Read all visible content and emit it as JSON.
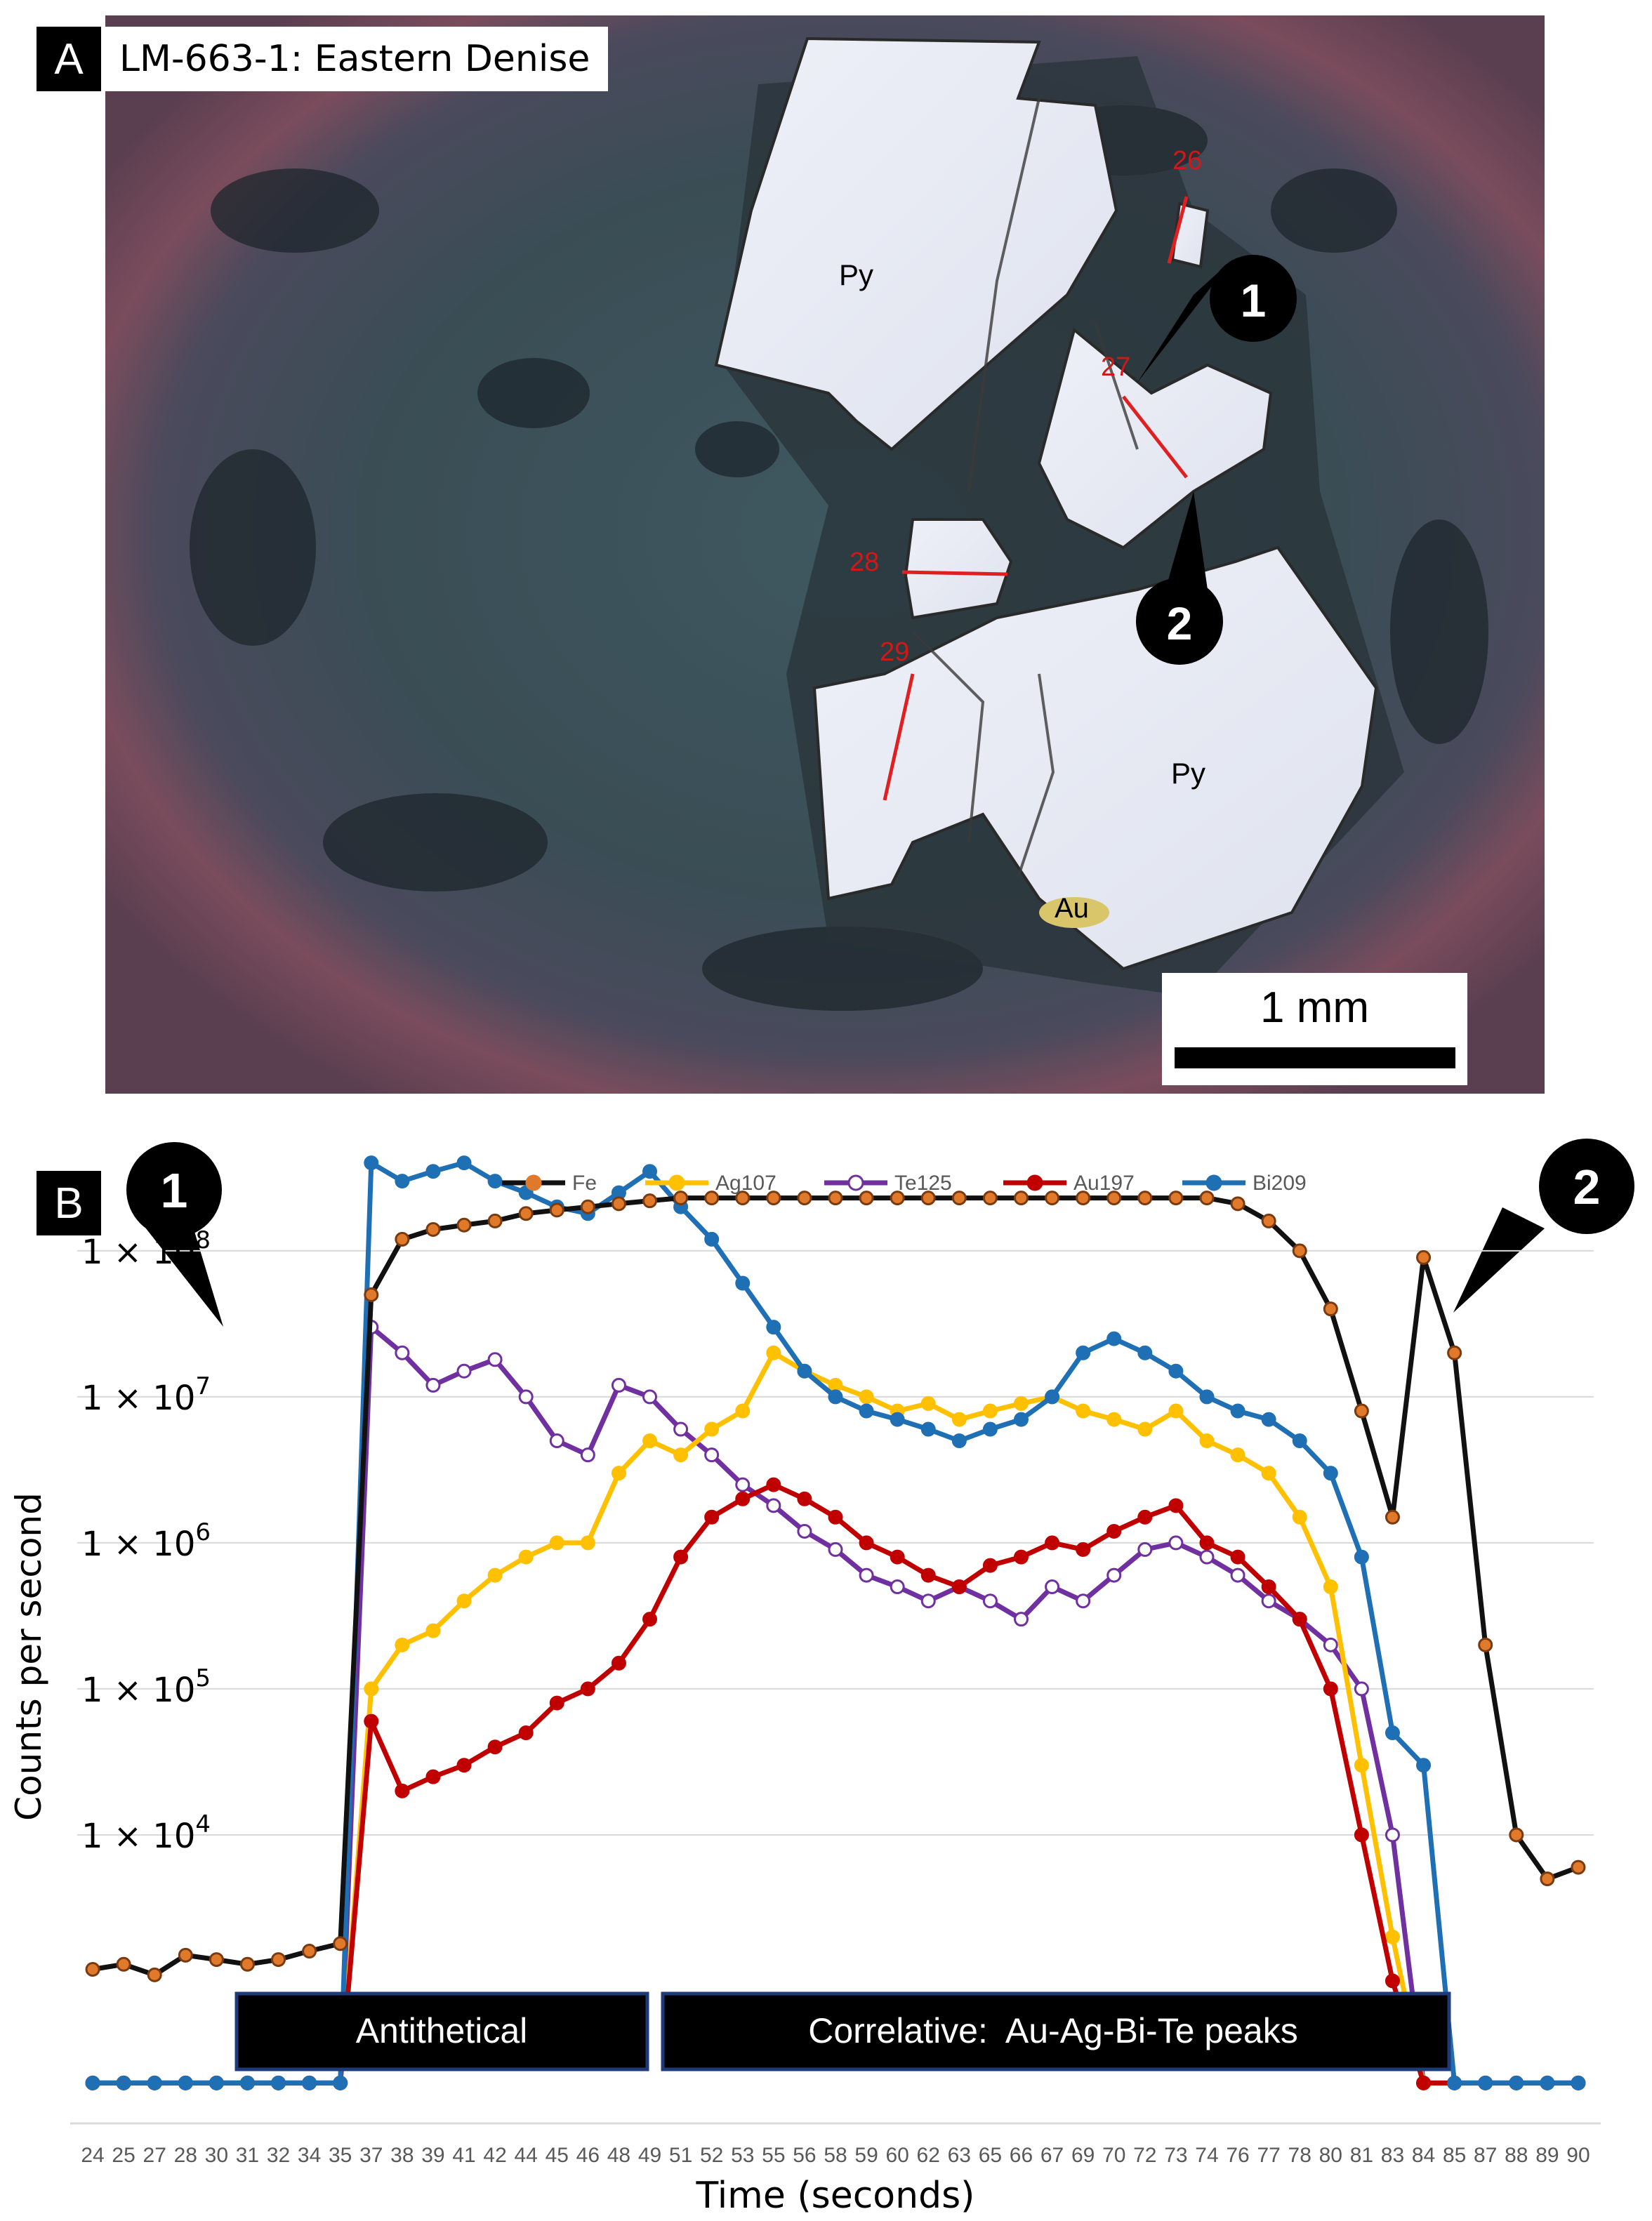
{
  "panel_a": {
    "letter": "A",
    "title": "LM-663-1: Eastern Denise",
    "scale_label": "1 mm",
    "mineral_labels": [
      "Py",
      "Py",
      "Au"
    ],
    "transect_labels": [
      "26",
      "27",
      "28",
      "29"
    ],
    "callouts": [
      "1",
      "2"
    ]
  },
  "panel_b": {
    "letter": "B",
    "callouts": [
      "1",
      "2"
    ],
    "boxes": [
      "Antithetical",
      "Correlative:  Au-Ag-Bi-Te peaks"
    ]
  },
  "colors": {
    "Fe": "#e07a2a",
    "Fe_line": "#111111",
    "Ag107": "#ffc000",
    "Te125": "#7030a0",
    "Au197": "#c00000",
    "Bi209": "#1f6fb4"
  },
  "chart_data": {
    "type": "line",
    "title": "",
    "xlabel": "Time (seconds)",
    "ylabel": "Counts per second",
    "y_scale": "log",
    "ylim": [
      100,
      600000000
    ],
    "y_tick_values": [
      10000,
      100000,
      1000000,
      10000000,
      100000000
    ],
    "y_tick_labels": [
      "1 × 10^4",
      "1 × 10^5",
      "1 × 10^6",
      "1 × 10^7",
      "1 × 10^8"
    ],
    "x_tick_labels": [
      "24",
      "25",
      "27",
      "28",
      "30",
      "31",
      "32",
      "34",
      "35",
      "37",
      "38",
      "39",
      "41",
      "42",
      "44",
      "45",
      "46",
      "48",
      "49",
      "51",
      "52",
      "53",
      "55",
      "56",
      "58",
      "59",
      "60",
      "62",
      "63",
      "65",
      "66",
      "67",
      "69",
      "70",
      "72",
      "73",
      "74",
      "76",
      "77",
      "78",
      "80",
      "81",
      "83",
      "84",
      "85",
      "87",
      "88",
      "89",
      "90"
    ],
    "legend": "top",
    "grid": "horizontal",
    "series": [
      {
        "name": "Fe",
        "values": [
          1200,
          1300,
          1100,
          1500,
          1400,
          1300,
          1400,
          1600,
          1800,
          50000000,
          120000000,
          140000000,
          150000000,
          160000000,
          180000000,
          190000000,
          200000000,
          210000000,
          220000000,
          230000000,
          230000000,
          230000000,
          230000000,
          230000000,
          230000000,
          230000000,
          230000000,
          230000000,
          230000000,
          230000000,
          230000000,
          230000000,
          230000000,
          230000000,
          230000000,
          230000000,
          230000000,
          210000000,
          160000000,
          100000000,
          40000000,
          8000000,
          1500000,
          90000000,
          20000000,
          200000,
          10000,
          5000,
          6000
        ]
      },
      {
        "name": "Ag107",
        "values": [
          200,
          200,
          200,
          200,
          200,
          200,
          200,
          200,
          200,
          100000,
          200000,
          250000,
          400000,
          600000,
          800000,
          1000000,
          1000000,
          3000000,
          5000000,
          4000000,
          6000000,
          8000000,
          20000000,
          15000000,
          12000000,
          10000000,
          8000000,
          9000000,
          7000000,
          8000000,
          9000000,
          10000000,
          8000000,
          7000000,
          6000000,
          8000000,
          5000000,
          4000000,
          3000000,
          1500000,
          500000,
          30000,
          2000,
          200,
          200,
          200,
          200,
          200,
          200
        ]
      },
      {
        "name": "Te125",
        "values": [
          200,
          200,
          200,
          200,
          200,
          200,
          200,
          200,
          200,
          30000000,
          20000000,
          12000000,
          15000000,
          18000000,
          10000000,
          5000000,
          4000000,
          12000000,
          10000000,
          6000000,
          4000000,
          2500000,
          1800000,
          1200000,
          900000,
          600000,
          500000,
          400000,
          500000,
          400000,
          300000,
          500000,
          400000,
          600000,
          900000,
          1000000,
          800000,
          600000,
          400000,
          300000,
          200000,
          100000,
          10000,
          200,
          200,
          200,
          200,
          200,
          200
        ]
      },
      {
        "name": "Au197",
        "values": [
          200,
          200,
          200,
          200,
          200,
          200,
          200,
          200,
          200,
          60000,
          20000,
          25000,
          30000,
          40000,
          50000,
          80000,
          100000,
          150000,
          300000,
          800000,
          1500000,
          2000000,
          2500000,
          2000000,
          1500000,
          1000000,
          800000,
          600000,
          500000,
          700000,
          800000,
          1000000,
          900000,
          1200000,
          1500000,
          1800000,
          1000000,
          800000,
          500000,
          300000,
          100000,
          10000,
          1000,
          200,
          200,
          200,
          200,
          200,
          200
        ]
      },
      {
        "name": "Bi209",
        "values": [
          200,
          200,
          200,
          200,
          200,
          200,
          200,
          200,
          200,
          400000000,
          300000000,
          350000000,
          400000000,
          300000000,
          250000000,
          200000000,
          180000000,
          250000000,
          350000000,
          200000000,
          120000000,
          60000000,
          30000000,
          15000000,
          10000000,
          8000000,
          7000000,
          6000000,
          5000000,
          6000000,
          7000000,
          10000000,
          20000000,
          25000000,
          20000000,
          15000000,
          10000000,
          8000000,
          7000000,
          5000000,
          3000000,
          800000,
          50000,
          30000,
          200,
          200,
          200,
          200,
          200
        ]
      }
    ]
  }
}
